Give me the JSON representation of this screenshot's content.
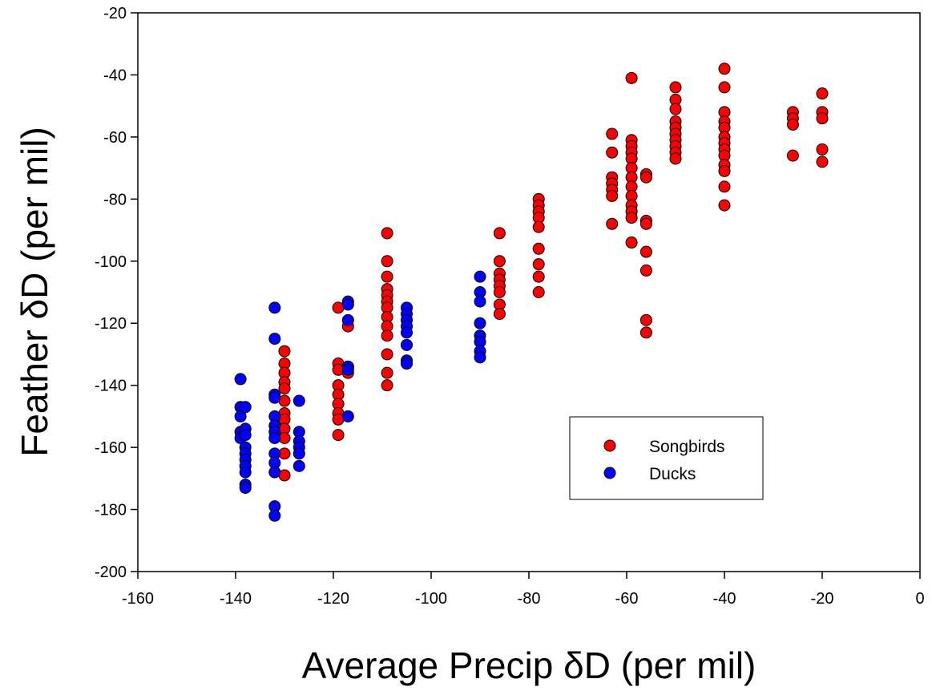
{
  "chart_data": {
    "type": "scatter",
    "title": "",
    "xlabel": "Average Precip δD (per mil)",
    "ylabel": "Feather δD (per mil)",
    "xlim": [
      -160,
      0
    ],
    "ylim": [
      -200,
      -20
    ],
    "xticks": [
      -160,
      -140,
      -120,
      -100,
      -80,
      -60,
      -40,
      -20,
      0
    ],
    "yticks": [
      -200,
      -180,
      -160,
      -140,
      -120,
      -100,
      -80,
      -60,
      -40,
      -20
    ],
    "grid": false,
    "legend_position": "center-right",
    "series": [
      {
        "name": "Songbirds",
        "color": "#ff0000",
        "points": [
          [
            -130,
            -129
          ],
          [
            -130,
            -133
          ],
          [
            -130,
            -136
          ],
          [
            -130,
            -139
          ],
          [
            -130,
            -141
          ],
          [
            -130,
            -145
          ],
          [
            -130,
            -149
          ],
          [
            -130,
            -151
          ],
          [
            -130,
            -154
          ],
          [
            -130,
            -157
          ],
          [
            -130,
            -162
          ],
          [
            -130,
            -169
          ],
          [
            -119,
            -115
          ],
          [
            -119,
            -133
          ],
          [
            -119,
            -135
          ],
          [
            -119,
            -140
          ],
          [
            -119,
            -143
          ],
          [
            -119,
            -146
          ],
          [
            -119,
            -149
          ],
          [
            -119,
            -151
          ],
          [
            -119,
            -156
          ],
          [
            -117,
            -121
          ],
          [
            -117,
            -134
          ],
          [
            -117,
            -136
          ],
          [
            -109,
            -91
          ],
          [
            -109,
            -100
          ],
          [
            -109,
            -105
          ],
          [
            -109,
            -109
          ],
          [
            -109,
            -111
          ],
          [
            -109,
            -113
          ],
          [
            -109,
            -115
          ],
          [
            -109,
            -118
          ],
          [
            -109,
            -121
          ],
          [
            -109,
            -124
          ],
          [
            -109,
            -130
          ],
          [
            -109,
            -136
          ],
          [
            -109,
            -140
          ],
          [
            -86,
            -91
          ],
          [
            -86,
            -100
          ],
          [
            -86,
            -104
          ],
          [
            -86,
            -106
          ],
          [
            -86,
            -108
          ],
          [
            -86,
            -110
          ],
          [
            -86,
            -114
          ],
          [
            -86,
            -117
          ],
          [
            -78,
            -80
          ],
          [
            -78,
            -82
          ],
          [
            -78,
            -84
          ],
          [
            -78,
            -86
          ],
          [
            -78,
            -89
          ],
          [
            -78,
            -96
          ],
          [
            -78,
            -101
          ],
          [
            -78,
            -105
          ],
          [
            -78,
            -110
          ],
          [
            -63,
            -59
          ],
          [
            -63,
            -65
          ],
          [
            -63,
            -73
          ],
          [
            -63,
            -75
          ],
          [
            -63,
            -77
          ],
          [
            -63,
            -79
          ],
          [
            -63,
            -88
          ],
          [
            -59,
            -41
          ],
          [
            -59,
            -61
          ],
          [
            -59,
            -63
          ],
          [
            -59,
            -65
          ],
          [
            -59,
            -67
          ],
          [
            -59,
            -70
          ],
          [
            -59,
            -73
          ],
          [
            -59,
            -76
          ],
          [
            -59,
            -79
          ],
          [
            -59,
            -82
          ],
          [
            -59,
            -84
          ],
          [
            -59,
            -86
          ],
          [
            -59,
            -94
          ],
          [
            -56,
            -72
          ],
          [
            -56,
            -73
          ],
          [
            -56,
            -87
          ],
          [
            -56,
            -88
          ],
          [
            -56,
            -97
          ],
          [
            -56,
            -103
          ],
          [
            -56,
            -119
          ],
          [
            -56,
            -123
          ],
          [
            -50,
            -44
          ],
          [
            -50,
            -48
          ],
          [
            -50,
            -51
          ],
          [
            -50,
            -55
          ],
          [
            -50,
            -57
          ],
          [
            -50,
            -59
          ],
          [
            -50,
            -61
          ],
          [
            -50,
            -63
          ],
          [
            -50,
            -65
          ],
          [
            -50,
            -67
          ],
          [
            -40,
            -38
          ],
          [
            -40,
            -44
          ],
          [
            -40,
            -52
          ],
          [
            -40,
            -55
          ],
          [
            -40,
            -57
          ],
          [
            -40,
            -60
          ],
          [
            -40,
            -62
          ],
          [
            -40,
            -64
          ],
          [
            -40,
            -66
          ],
          [
            -40,
            -69
          ],
          [
            -40,
            -71
          ],
          [
            -40,
            -76
          ],
          [
            -40,
            -82
          ],
          [
            -26,
            -52
          ],
          [
            -26,
            -54
          ],
          [
            -26,
            -56
          ],
          [
            -26,
            -66
          ],
          [
            -20,
            -46
          ],
          [
            -20,
            -52
          ],
          [
            -20,
            -54
          ],
          [
            -20,
            -64
          ],
          [
            -20,
            -68
          ]
        ]
      },
      {
        "name": "Ducks",
        "color": "#0000ff",
        "points": [
          [
            -139,
            -138
          ],
          [
            -139,
            -147
          ],
          [
            -139,
            -150
          ],
          [
            -139,
            -155
          ],
          [
            -139,
            -157
          ],
          [
            -138,
            -147
          ],
          [
            -138,
            -154
          ],
          [
            -138,
            -156
          ],
          [
            -138,
            -160
          ],
          [
            -138,
            -162
          ],
          [
            -138,
            -164
          ],
          [
            -138,
            -166
          ],
          [
            -138,
            -168
          ],
          [
            -138,
            -172
          ],
          [
            -138,
            -173
          ],
          [
            -132,
            -115
          ],
          [
            -132,
            -125
          ],
          [
            -132,
            -143
          ],
          [
            -132,
            -144
          ],
          [
            -132,
            -150
          ],
          [
            -132,
            -153
          ],
          [
            -132,
            -155
          ],
          [
            -132,
            -157
          ],
          [
            -132,
            -162
          ],
          [
            -132,
            -165
          ],
          [
            -132,
            -168
          ],
          [
            -132,
            -179
          ],
          [
            -132,
            -182
          ],
          [
            -127,
            -145
          ],
          [
            -127,
            -155
          ],
          [
            -127,
            -158
          ],
          [
            -127,
            -160
          ],
          [
            -127,
            -162
          ],
          [
            -127,
            -166
          ],
          [
            -117,
            -113
          ],
          [
            -117,
            -114
          ],
          [
            -117,
            -119
          ],
          [
            -117,
            -134
          ],
          [
            -117,
            -135
          ],
          [
            -117,
            -150
          ],
          [
            -105,
            -115
          ],
          [
            -105,
            -117
          ],
          [
            -105,
            -119
          ],
          [
            -105,
            -121
          ],
          [
            -105,
            -123
          ],
          [
            -105,
            -127
          ],
          [
            -105,
            -132
          ],
          [
            -105,
            -133
          ],
          [
            -90,
            -105
          ],
          [
            -90,
            -110
          ],
          [
            -90,
            -113
          ],
          [
            -90,
            -120
          ],
          [
            -90,
            -124
          ],
          [
            -90,
            -126
          ],
          [
            -90,
            -129
          ],
          [
            -90,
            -131
          ]
        ]
      }
    ]
  }
}
